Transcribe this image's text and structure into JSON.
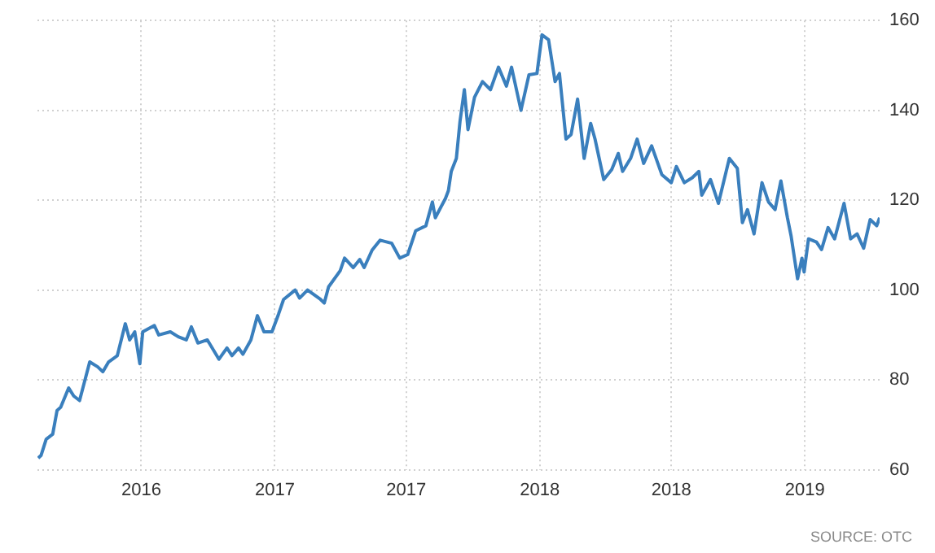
{
  "chart_data": {
    "type": "line",
    "x": [
      "2016-02-10",
      "2016-02-14",
      "2016-02-21",
      "2016-03-01",
      "2016-03-07",
      "2016-03-12",
      "2016-03-23",
      "2016-03-30",
      "2016-04-07",
      "2016-04-21",
      "2016-05-02",
      "2016-05-09",
      "2016-05-17",
      "2016-05-29",
      "2016-06-09",
      "2016-06-15",
      "2016-06-22",
      "2016-06-29",
      "2016-07-03",
      "2016-07-19",
      "2016-07-25",
      "2016-08-10",
      "2016-08-21",
      "2016-09-01",
      "2016-09-08",
      "2016-09-17",
      "2016-09-30",
      "2016-10-16",
      "2016-10-27",
      "2016-11-03",
      "2016-11-12",
      "2016-11-18",
      "2016-11-29",
      "2016-12-08",
      "2016-12-17",
      "2016-12-28",
      "2017-01-06",
      "2017-01-13",
      "2017-01-29",
      "2017-02-04",
      "2017-02-15",
      "2017-03-05",
      "2017-03-10",
      "2017-03-16",
      "2017-04-01",
      "2017-04-07",
      "2017-04-19",
      "2017-04-28",
      "2017-05-04",
      "2017-05-15",
      "2017-05-26",
      "2017-06-11",
      "2017-06-22",
      "2017-07-03",
      "2017-07-14",
      "2017-07-28",
      "2017-08-06",
      "2017-08-10",
      "2017-08-24",
      "2017-08-28",
      "2017-09-01",
      "2017-09-08",
      "2017-09-13",
      "2017-09-19",
      "2017-09-24",
      "2017-10-03",
      "2017-10-14",
      "2017-10-25",
      "2017-11-05",
      "2017-11-16",
      "2017-11-23",
      "2017-12-06",
      "2017-12-17",
      "2017-12-28",
      "2018-01-04",
      "2018-01-13",
      "2018-01-22",
      "2018-01-28",
      "2018-02-06",
      "2018-02-13",
      "2018-02-22",
      "2018-03-03",
      "2018-03-12",
      "2018-03-18",
      "2018-03-30",
      "2018-04-10",
      "2018-04-19",
      "2018-04-25",
      "2018-05-06",
      "2018-05-15",
      "2018-05-24",
      "2018-06-04",
      "2018-06-18",
      "2018-07-01",
      "2018-07-08",
      "2018-07-19",
      "2018-07-30",
      "2018-08-08",
      "2018-08-12",
      "2018-08-24",
      "2018-09-04",
      "2018-09-19",
      "2018-09-30",
      "2018-10-07",
      "2018-10-14",
      "2018-10-23",
      "2018-11-03",
      "2018-11-12",
      "2018-11-21",
      "2018-11-29",
      "2018-12-08",
      "2018-12-13",
      "2018-12-22",
      "2018-12-28",
      "2018-12-31",
      "2019-01-06",
      "2019-01-17",
      "2019-01-24",
      "2019-02-02",
      "2019-02-11",
      "2019-02-24",
      "2019-03-05",
      "2019-03-14",
      "2019-03-23",
      "2019-04-01",
      "2019-04-10",
      "2019-04-14"
    ],
    "series": [
      {
        "color": "#3a7fbd",
        "values": [
          62.6,
          63.2,
          66.8,
          67.9,
          73.2,
          73.9,
          78.2,
          76.4,
          75.4,
          84,
          82.9,
          81.8,
          84,
          85.4,
          92.5,
          88.9,
          90.7,
          83.6,
          90.7,
          92.1,
          90,
          90.7,
          89.6,
          88.9,
          91.8,
          88.2,
          88.9,
          84.6,
          87.1,
          85.4,
          87.1,
          85.7,
          88.9,
          94.3,
          90.7,
          90.7,
          94.6,
          97.9,
          100,
          98.2,
          100,
          97.9,
          97.1,
          100.7,
          104.3,
          107.1,
          105,
          106.8,
          105,
          108.9,
          111.1,
          110.4,
          107.1,
          107.9,
          113.2,
          114.3,
          119.6,
          116.1,
          120.4,
          122.1,
          126.4,
          129.3,
          137.5,
          144.6,
          135.7,
          142.9,
          146.4,
          144.6,
          149.6,
          145.4,
          149.6,
          140,
          147.9,
          148.2,
          156.8,
          155.7,
          146.4,
          148.2,
          133.6,
          134.6,
          142.5,
          129.3,
          137.1,
          133.6,
          124.6,
          126.8,
          130.4,
          126.4,
          129.3,
          133.6,
          128.2,
          132.1,
          125.7,
          123.9,
          127.5,
          123.9,
          125,
          126.4,
          121.1,
          124.6,
          119.3,
          129.3,
          127.1,
          115,
          117.9,
          112.5,
          123.9,
          119.6,
          117.9,
          124.3,
          116.1,
          112.1,
          102.5,
          107.1,
          104,
          111.4,
          110.7,
          109,
          113.9,
          111.4,
          119.3,
          111.4,
          112.5,
          109.3,
          115.7,
          114.3,
          116.1
        ]
      }
    ],
    "xlim": [
      "2016-02-09",
      "2019-04-14"
    ],
    "xticks": [
      {
        "value": "2016-07-01",
        "label": "2016"
      },
      {
        "value": "2017-01-01",
        "label": "2017"
      },
      {
        "value": "2017-07-01",
        "label": "2017"
      },
      {
        "value": "2018-01-01",
        "label": "2018"
      },
      {
        "value": "2018-07-01",
        "label": "2018"
      },
      {
        "value": "2019-01-01",
        "label": "2019"
      }
    ],
    "ylim": [
      60,
      160
    ],
    "yticks": [
      60,
      80,
      100,
      120,
      140,
      160
    ],
    "grid": true,
    "marker": "none",
    "line_style": "solid",
    "annotations": [
      "SOURCE: OTC"
    ]
  }
}
